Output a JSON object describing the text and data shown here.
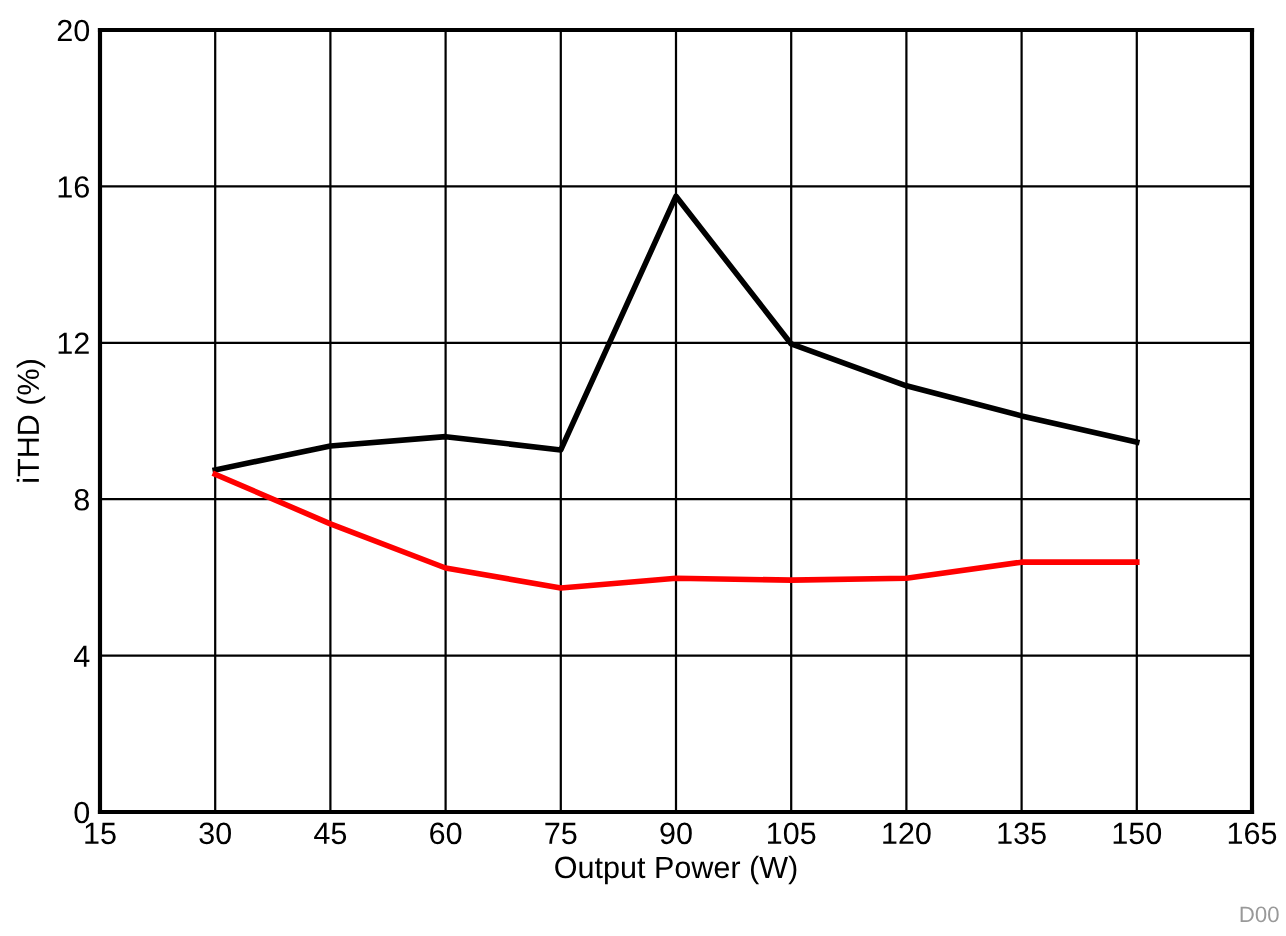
{
  "chart_data": {
    "type": "line",
    "xlabel": "Output Power (W)",
    "ylabel": "iTHD (%)",
    "x": [
      30,
      45,
      60,
      75,
      90,
      105,
      120,
      135,
      150
    ],
    "series": [
      {
        "color": "#000000",
        "values": [
          8.75,
          9.36,
          9.6,
          9.26,
          15.75,
          11.97,
          10.9,
          10.13,
          9.46
        ]
      },
      {
        "color": "#ff0000",
        "values": [
          8.64,
          7.37,
          6.24,
          5.73,
          5.98,
          5.93,
          5.98,
          6.39,
          6.39
        ]
      }
    ],
    "xlim": [
      15,
      165
    ],
    "xticks": [
      15,
      30,
      45,
      60,
      75,
      90,
      105,
      120,
      135,
      150,
      165
    ],
    "ylim": [
      0,
      20
    ],
    "yticks": [
      0,
      4,
      8,
      12,
      16,
      20
    ],
    "grid": true,
    "marker": "none",
    "line_style": "solid",
    "annotations": [
      "D00"
    ]
  }
}
